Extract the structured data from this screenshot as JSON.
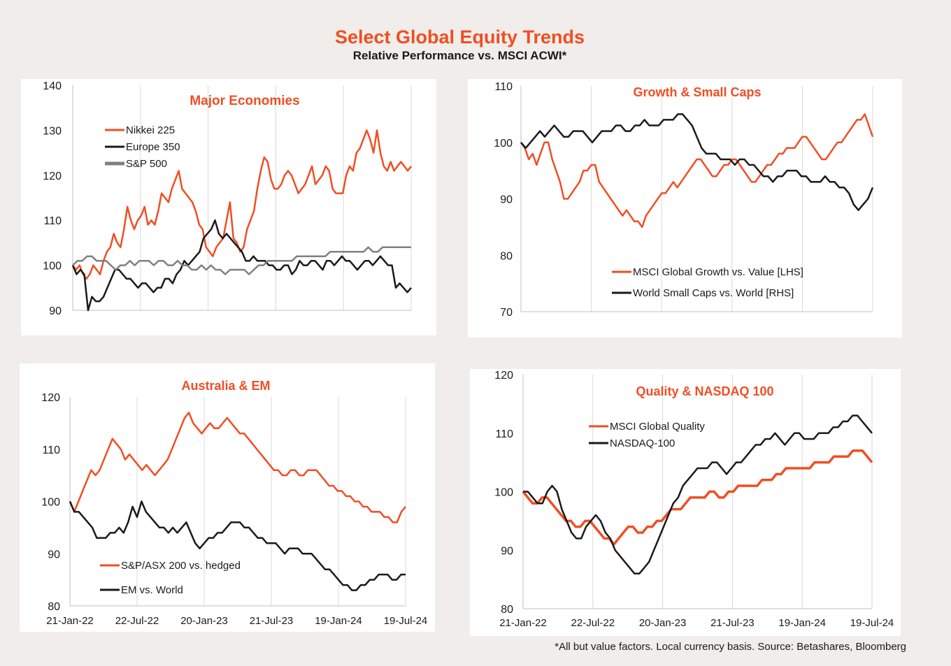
{
  "header": {
    "title": "Select Global Equity Trends",
    "subtitle": "Relative Performance vs. MSCI ACWI*"
  },
  "footnote": "*All but value  factors. Local currency  basis.  Source: Betashares, Bloomberg",
  "colors": {
    "orange": "#f04e23",
    "black": "#1a1a1a",
    "grey": "#808080",
    "title": "#f04e23"
  },
  "chart_data": [
    {
      "type": "line",
      "title": "Major  Economies",
      "ylim": [
        90,
        140
      ],
      "yticks": [
        140,
        130,
        120,
        110,
        100,
        90
      ],
      "xlim": [
        0,
        130
      ],
      "grid": "vertical",
      "legend": "top-left",
      "series": [
        {
          "name": "Nikkei 225",
          "color": "#f04e23",
          "values": [
            100,
            99,
            100,
            98,
            97,
            98,
            100,
            99,
            98,
            101,
            103,
            104,
            107,
            105,
            104,
            108,
            113,
            110,
            108,
            110,
            111,
            113,
            109,
            110,
            109,
            112,
            116,
            115,
            114,
            117,
            119,
            121,
            117,
            116,
            115,
            114,
            112,
            109,
            108,
            104,
            103,
            102,
            104,
            105,
            106,
            110,
            114,
            106,
            105,
            103,
            104,
            108,
            110,
            112,
            117,
            121,
            124,
            123,
            119,
            117,
            117,
            118,
            120,
            121,
            120,
            118,
            116,
            117,
            118,
            120,
            122,
            118,
            119,
            120,
            122,
            121,
            117,
            116,
            116,
            116,
            120,
            122,
            121,
            125,
            126,
            128,
            130,
            128,
            125,
            130,
            125,
            122,
            121,
            123,
            121,
            122,
            123,
            122,
            121,
            122
          ]
        },
        {
          "name": "Europe 350",
          "color": "#1a1a1a",
          "values": [
            100,
            98,
            99,
            98,
            90,
            93,
            92,
            92,
            93,
            95,
            97,
            99,
            99,
            98,
            97,
            97,
            96,
            95,
            96,
            96,
            95,
            94,
            95,
            95,
            97,
            97,
            96,
            98,
            99,
            101,
            100,
            101,
            102,
            103,
            106,
            107,
            108,
            110,
            107,
            106,
            107,
            106,
            105,
            104,
            103,
            101,
            101,
            102,
            101,
            101,
            101,
            100,
            100,
            99,
            99,
            100,
            100,
            98,
            99,
            101,
            100,
            100,
            101,
            101,
            100,
            99,
            101,
            101,
            100,
            101,
            102,
            101,
            101,
            100,
            99,
            100,
            101,
            101,
            100,
            101,
            102,
            101,
            100,
            100,
            95,
            96,
            95,
            94,
            95
          ]
        },
        {
          "name": "S&P 500",
          "color": "#808080",
          "values": [
            100,
            101,
            101,
            102,
            102,
            101,
            101,
            101,
            100,
            99,
            100,
            100,
            101,
            100,
            101,
            101,
            101,
            100,
            101,
            101,
            100,
            100,
            101,
            100,
            100,
            99,
            99,
            100,
            99,
            100,
            99,
            99,
            98,
            99,
            99,
            99,
            99,
            98,
            99,
            100,
            100,
            101,
            101,
            101,
            101,
            101,
            101,
            102,
            102,
            102,
            102,
            102,
            102,
            102,
            103,
            103,
            103,
            103,
            103,
            103,
            103,
            103,
            104,
            103,
            103,
            104,
            104,
            104,
            104,
            104,
            104,
            104
          ]
        }
      ]
    },
    {
      "type": "line",
      "title": "Growth & Small Caps",
      "ylim": [
        70,
        110
      ],
      "yticks": [
        110,
        100,
        90,
        80,
        70
      ],
      "xlim": [
        0,
        130
      ],
      "grid": "vertical",
      "legend": "bottom-left",
      "series": [
        {
          "name": "MSCI Global Growth vs. Value [LHS]",
          "color": "#f04e23",
          "values": [
            100,
            99,
            97,
            98,
            96,
            98,
            100,
            100,
            97,
            95,
            93,
            90,
            90,
            91,
            92,
            93,
            95,
            95,
            96,
            96,
            93,
            92,
            91,
            90,
            89,
            88,
            87,
            88,
            87,
            86,
            86,
            85,
            87,
            88,
            89,
            90,
            91,
            91,
            92,
            93,
            92,
            93,
            94,
            95,
            96,
            97,
            97,
            96,
            95,
            94,
            94,
            95,
            96,
            96,
            97,
            97,
            96,
            95,
            94,
            93,
            93,
            94,
            95,
            96,
            96,
            97,
            98,
            98,
            99,
            99,
            99,
            100,
            101,
            101,
            100,
            99,
            98,
            97,
            97,
            98,
            99,
            100,
            100,
            101,
            102,
            103,
            104,
            104,
            105,
            103,
            101
          ]
        },
        {
          "name": "World Small Caps vs. World [RHS]",
          "color": "#1a1a1a",
          "values": [
            100,
            99,
            100,
            101,
            102,
            101,
            102,
            103,
            102,
            101,
            101,
            102,
            102,
            102,
            101,
            100,
            101,
            102,
            102,
            102,
            103,
            103,
            102,
            102,
            103,
            103,
            104,
            103,
            103,
            103,
            104,
            104,
            104,
            105,
            105,
            104,
            103,
            101,
            99,
            98,
            98,
            98,
            97,
            97,
            97,
            96,
            97,
            97,
            96,
            96,
            95,
            94,
            94,
            93,
            94,
            94,
            95,
            95,
            95,
            94,
            94,
            93,
            93,
            93,
            94,
            93,
            93,
            92,
            92,
            91,
            89,
            88,
            89,
            90,
            92
          ]
        }
      ]
    },
    {
      "type": "line",
      "title": "Australia & EM",
      "ylim": [
        80,
        120
      ],
      "yticks": [
        120,
        110,
        100,
        90,
        80
      ],
      "xlim": [
        0,
        130
      ],
      "grid": "vertical",
      "legend": "bottom-left",
      "series": [
        {
          "name": "S&P/ASX 200 vs. hedged",
          "color": "#f04e23",
          "values": [
            100,
            98,
            100,
            102,
            104,
            106,
            105,
            106,
            108,
            110,
            112,
            111,
            110,
            108,
            109,
            108,
            107,
            106,
            107,
            106,
            105,
            106,
            107,
            108,
            110,
            112,
            114,
            116,
            117,
            115,
            114,
            113,
            114,
            115,
            114,
            114,
            115,
            116,
            115,
            114,
            113,
            113,
            112,
            111,
            110,
            109,
            108,
            107,
            106,
            106,
            105,
            105,
            106,
            106,
            105,
            105,
            106,
            106,
            106,
            105,
            104,
            103,
            103,
            102,
            102,
            101,
            101,
            100,
            100,
            99,
            99,
            98,
            98,
            98,
            97,
            97,
            96,
            96,
            98,
            99
          ]
        },
        {
          "name": "EM vs. World",
          "color": "#1a1a1a",
          "values": [
            100,
            98,
            98,
            97,
            96,
            95,
            93,
            93,
            93,
            94,
            94,
            95,
            94,
            96,
            99,
            97,
            100,
            98,
            97,
            96,
            95,
            95,
            94,
            95,
            94,
            95,
            96,
            94,
            92,
            91,
            92,
            93,
            93,
            94,
            94,
            95,
            96,
            96,
            96,
            95,
            95,
            94,
            93,
            93,
            92,
            92,
            92,
            91,
            90,
            91,
            91,
            91,
            90,
            90,
            90,
            89,
            88,
            87,
            87,
            86,
            85,
            84,
            84,
            83,
            83,
            84,
            84,
            85,
            85,
            86,
            86,
            86,
            85,
            85,
            86,
            86
          ]
        }
      ]
    },
    {
      "type": "line",
      "title": "Quality & NASDAQ 100",
      "ylim": [
        80,
        120
      ],
      "yticks": [
        120,
        110,
        100,
        90,
        80
      ],
      "xlim": [
        0,
        130
      ],
      "grid": "vertical",
      "legend": "top-left",
      "series": [
        {
          "name": "MSCI Global Quality",
          "color": "#f04e23",
          "values": [
            100,
            99,
            98,
            98,
            99,
            99,
            98,
            97,
            96,
            95,
            95,
            94,
            94,
            95,
            95,
            94,
            93,
            92,
            92,
            91,
            92,
            93,
            94,
            94,
            93,
            93,
            94,
            94,
            95,
            95,
            96,
            97,
            97,
            97,
            98,
            99,
            99,
            99,
            99,
            100,
            100,
            99,
            99,
            100,
            100,
            101,
            101,
            101,
            101,
            101,
            102,
            102,
            102,
            103,
            103,
            104,
            104,
            104,
            104,
            104,
            104,
            105,
            105,
            105,
            105,
            106,
            106,
            106,
            106,
            107,
            107,
            107,
            106,
            105
          ]
        },
        {
          "name": "NASDAQ-100",
          "color": "#1a1a1a",
          "values": [
            100,
            100,
            99,
            98,
            98,
            100,
            101,
            100,
            97,
            95,
            93,
            92,
            92,
            94,
            95,
            96,
            95,
            93,
            92,
            90,
            89,
            88,
            87,
            86,
            86,
            87,
            88,
            90,
            92,
            94,
            96,
            98,
            99,
            101,
            102,
            103,
            104,
            104,
            104,
            105,
            105,
            104,
            103,
            104,
            105,
            105,
            106,
            107,
            108,
            108,
            109,
            109,
            110,
            109,
            108,
            109,
            110,
            110,
            109,
            109,
            109,
            110,
            110,
            110,
            111,
            111,
            112,
            112,
            113,
            113,
            112,
            111,
            110
          ]
        }
      ]
    }
  ],
  "xaxis_labels": [
    "21-Jan-22",
    "22-Jul-22",
    "20-Jan-23",
    "21-Jul-23",
    "19-Jan-24",
    "19-Jul-24"
  ]
}
